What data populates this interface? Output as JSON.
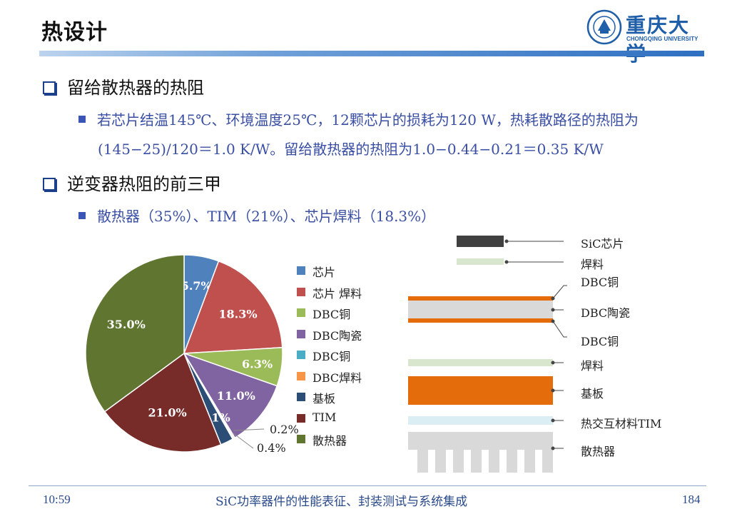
{
  "header": {
    "title": "热设计",
    "logo_text": "重庆大学",
    "logo_subtitle": "CHONGQING UNIVERSITY"
  },
  "section1": {
    "heading": "留给散热器的热阻",
    "bullet_line1": "若芯片结温145℃、环境温度25℃，12颗芯片的损耗为120 W，热耗散路径的热阻为",
    "bullet_line2": "(145−25)/120＝1.0 K/W。留给散热器的热阻为1.0−0.44−0.21＝0.35 K/W"
  },
  "section2": {
    "heading": "逆变器热阻的前三甲",
    "bullet": "散热器（35%）、TIM（21%）、芯片焊料（18.3%）"
  },
  "chart_data": {
    "type": "pie",
    "slices": [
      {
        "name": "芯片",
        "value": 5.7,
        "label": "5.7%",
        "color": "#4f81bd"
      },
      {
        "name": "芯片 焊料",
        "value": 18.3,
        "label": "18.3%",
        "color": "#c0504d"
      },
      {
        "name": "DBC铜",
        "value": 6.3,
        "label": "6.3%",
        "color": "#9bbb59"
      },
      {
        "name": "DBC陶瓷",
        "value": 11.0,
        "label": "11.0%",
        "color": "#8064a2"
      },
      {
        "name": "DBC铜",
        "value": 0.2,
        "label": "0.2%",
        "color": "#4bacc6"
      },
      {
        "name": "DBC焊料",
        "value": 0.2,
        "label": "",
        "color": "#f79646"
      },
      {
        "name": "基板",
        "value": 2.1,
        "label": "2.1%",
        "color": "#2c4d75"
      },
      {
        "name": "TIM",
        "value": 21.0,
        "label": "21.0%",
        "color": "#772c2a"
      },
      {
        "name": "散热器",
        "value": 35.0,
        "label": "35.0%",
        "color": "#5f7530"
      }
    ],
    "extra_labels": [
      "0.4%"
    ],
    "legend_position": "right"
  },
  "stack": {
    "chip": "SiC芯片",
    "solder1": "焊料",
    "dbc_cu_top": "DBC铜",
    "dbc_ceramic": "DBC陶瓷",
    "dbc_cu_bottom": "DBC铜",
    "solder2": "焊料",
    "base": "基板",
    "tim": "热交互材料TIM",
    "heatsink": "散热器",
    "colors": {
      "chip": "#404040",
      "solder": "#d8e6cd",
      "copper": "#e46c0a",
      "ceramic": "#d9d9d9",
      "tim": "#dbeef3",
      "heatsink": "#d9d9d9"
    }
  },
  "footer": {
    "time": "10:59",
    "title": "SiC功率器件的性能表征、封装测试与系统集成",
    "page": "184"
  }
}
